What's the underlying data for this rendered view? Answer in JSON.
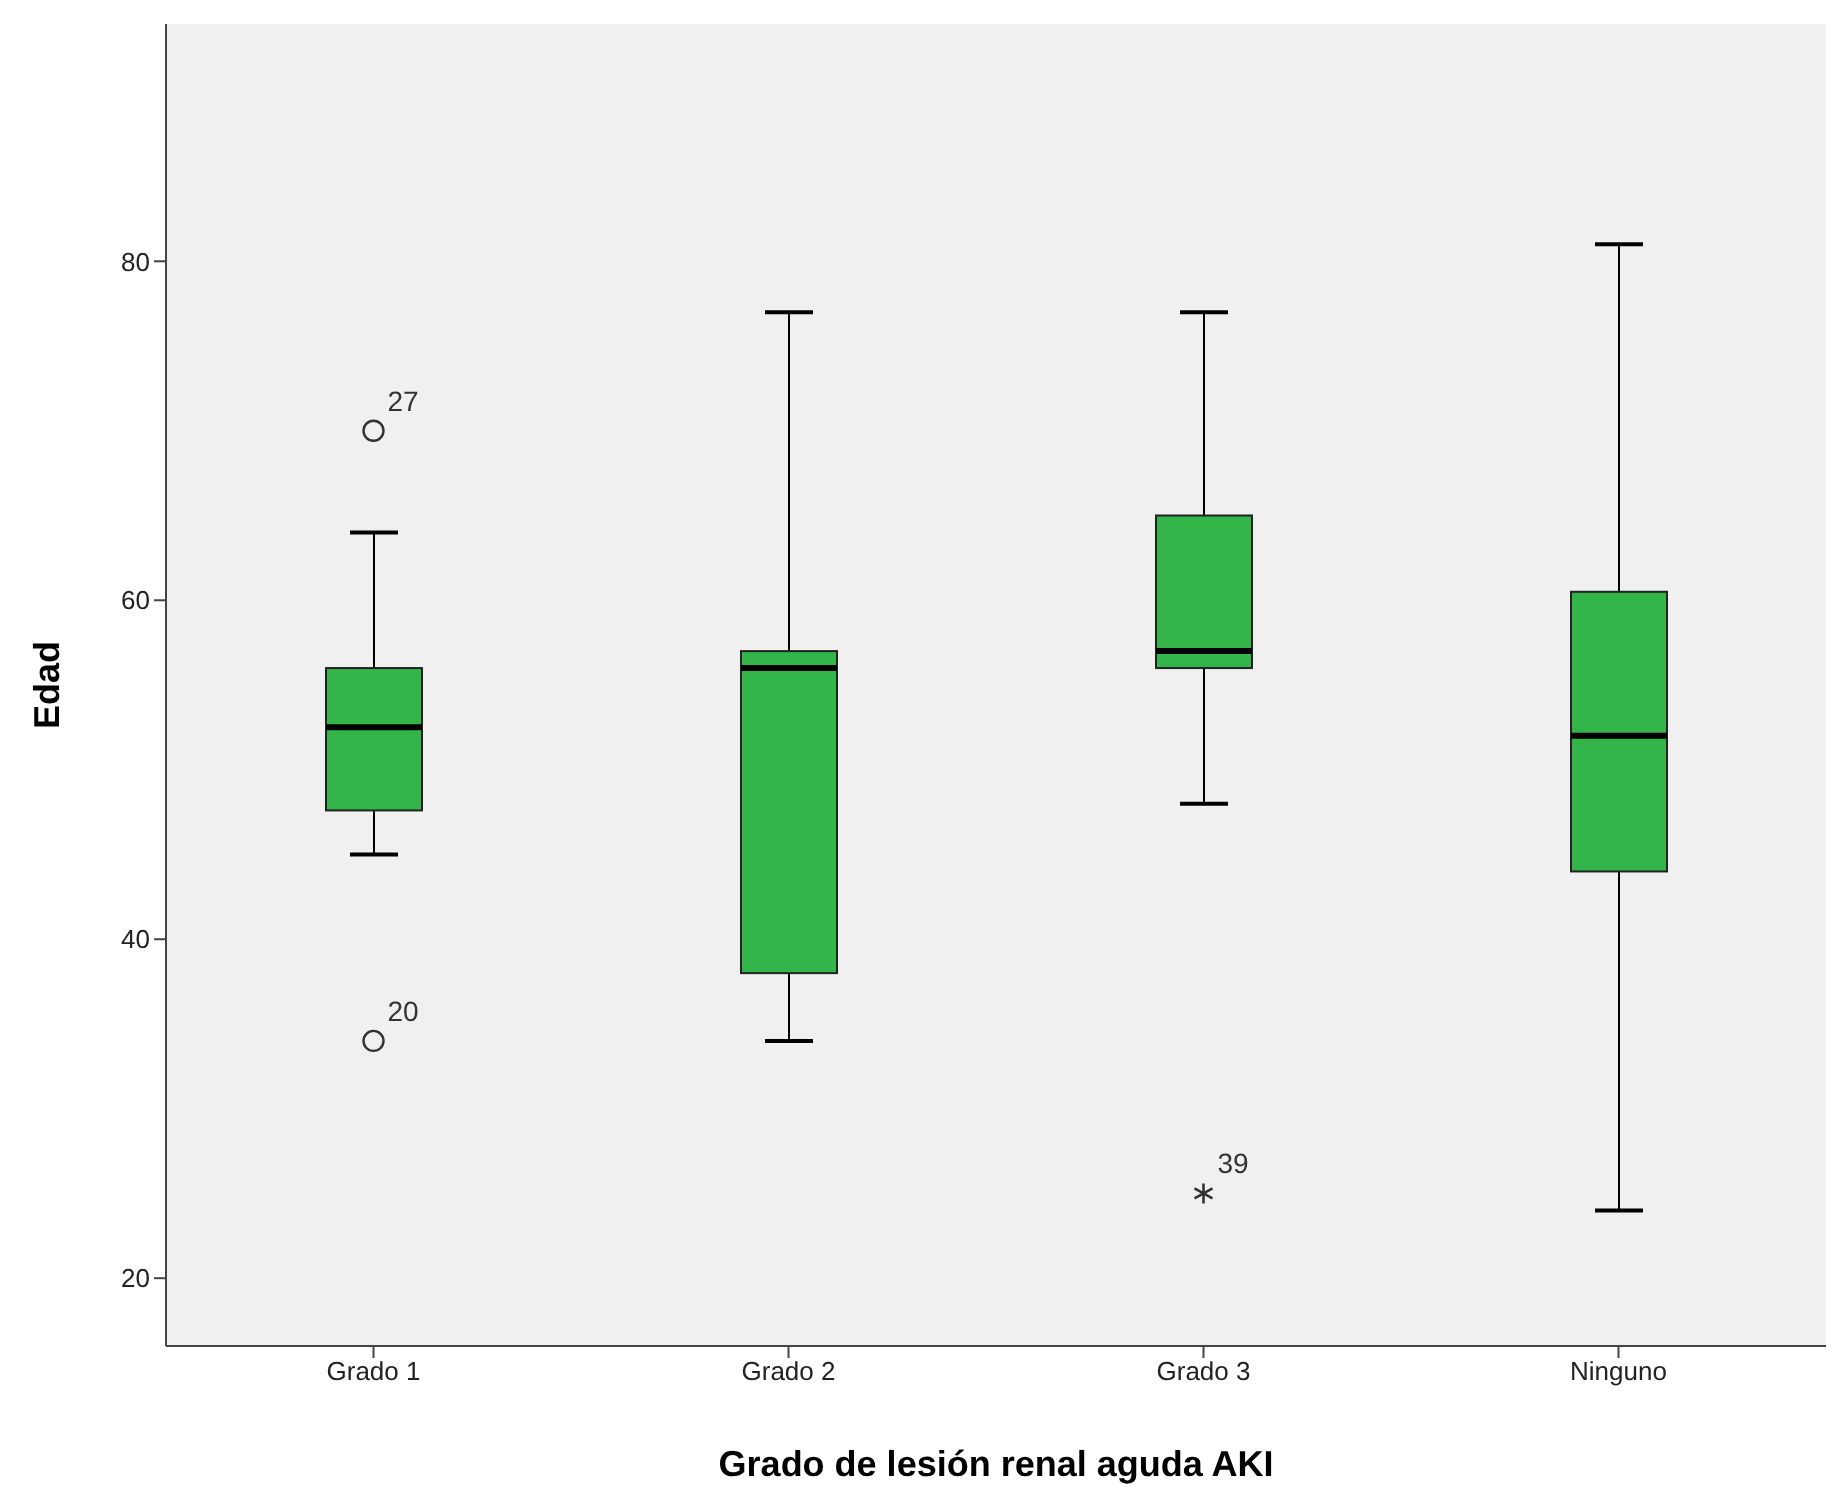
{
  "chart_data": {
    "type": "box",
    "xlabel": "Grado de lesión renal aguda AKI",
    "ylabel": "Edad",
    "categories": [
      "Grado 1",
      "Grado 2",
      "Grado 3",
      "Ninguno"
    ],
    "boxes": [
      {
        "low": 45,
        "q1": 47.6,
        "median": 52.5,
        "q3": 56,
        "high": 64,
        "outliers": [
          70,
          34
        ]
      },
      {
        "low": 34,
        "q1": 38,
        "median": 56,
        "q3": 57,
        "high": 77
      },
      {
        "low": 48,
        "q1": 56,
        "median": 57,
        "q3": 65,
        "high": 77,
        "outliers": [
          25
        ]
      },
      {
        "low": 24,
        "q1": 44,
        "median": 52,
        "q3": 60.5,
        "high": 81
      }
    ],
    "color": "#33b54a",
    "ylim": [
      16,
      94
    ],
    "yticks": [
      20,
      40,
      60,
      80
    ],
    "grid": false,
    "annotations": [
      "27",
      "20",
      "39"
    ]
  }
}
